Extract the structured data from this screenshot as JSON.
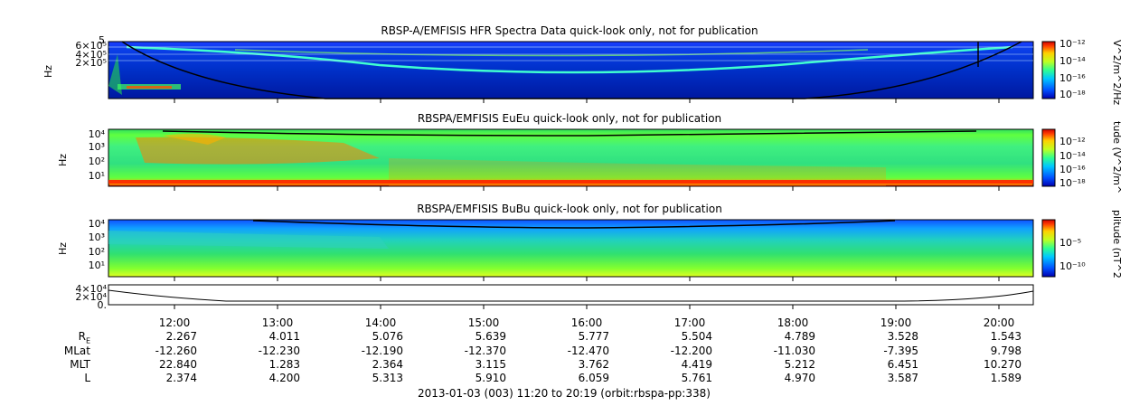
{
  "chart_data": [
    {
      "type": "heatmap",
      "title": "RBSP-A/EMFISIS  HFR Spectra Data quick-look only, not for publication",
      "ylabel": "Hz",
      "yticks": [
        "6×10⁵",
        "4×10⁵",
        "2×10⁵"
      ],
      "yticks_top": "5",
      "colorbar_label": "V^2/m^2/Hz",
      "colorbar_ticks": [
        "10⁻¹²",
        "10⁻¹⁴",
        "10⁻¹⁶",
        "10⁻¹⁸"
      ],
      "colormap": [
        "#0000b0",
        "#0050ff",
        "#00c8ff",
        "#30ff90",
        "#c0ff20",
        "#ffd000",
        "#ff4000",
        "#d00000"
      ]
    },
    {
      "type": "heatmap",
      "title": "RBSPA/EMFISIS  EuEu quick-look only, not for publication",
      "ylabel": "Hz",
      "yticks": [
        "10⁴",
        "10³",
        "10²",
        "10¹"
      ],
      "colorbar_label": "tude (V^2/m^",
      "colorbar_ticks": [
        "10⁻¹²",
        "10⁻¹⁴",
        "10⁻¹⁶",
        "10⁻¹⁸"
      ]
    },
    {
      "type": "heatmap",
      "title": "RBSPA/EMFISIS  BuBu quick-look only, not for publication",
      "ylabel": "Hz",
      "yticks": [
        "10⁴",
        "10³",
        "10²",
        "10¹"
      ],
      "colorbar_label": "plitude (nT^2",
      "colorbar_ticks": [
        "10⁻⁵",
        "10⁻¹⁰"
      ]
    },
    {
      "type": "line",
      "yticks": [
        "4×10⁴",
        "2×10⁴",
        "0."
      ]
    }
  ],
  "x_ticks": [
    "12:00",
    "13:00",
    "14:00",
    "15:00",
    "16:00",
    "17:00",
    "18:00",
    "19:00",
    "20:00"
  ],
  "ephemeris": [
    {
      "name": "R",
      "sub": "E",
      "values": [
        "2.267",
        "4.011",
        "5.076",
        "5.639",
        "5.777",
        "5.504",
        "4.789",
        "3.528",
        "1.543"
      ]
    },
    {
      "name": "MLat",
      "sub": "",
      "values": [
        "-12.260",
        "-12.230",
        "-12.190",
        "-12.370",
        "-12.470",
        "-12.200",
        "-11.030",
        "-7.395",
        "9.798"
      ]
    },
    {
      "name": "MLT",
      "sub": "",
      "values": [
        "22.840",
        "1.283",
        "2.364",
        "3.115",
        "3.762",
        "4.419",
        "5.212",
        "6.451",
        "10.270"
      ]
    },
    {
      "name": "L",
      "sub": "",
      "values": [
        "2.374",
        "4.200",
        "5.313",
        "5.910",
        "6.059",
        "5.761",
        "4.970",
        "3.587",
        "1.589"
      ]
    }
  ],
  "footer": "2013-01-03 (003) 11:20 to 20:19 (orbit:rbspa-pp:338)"
}
